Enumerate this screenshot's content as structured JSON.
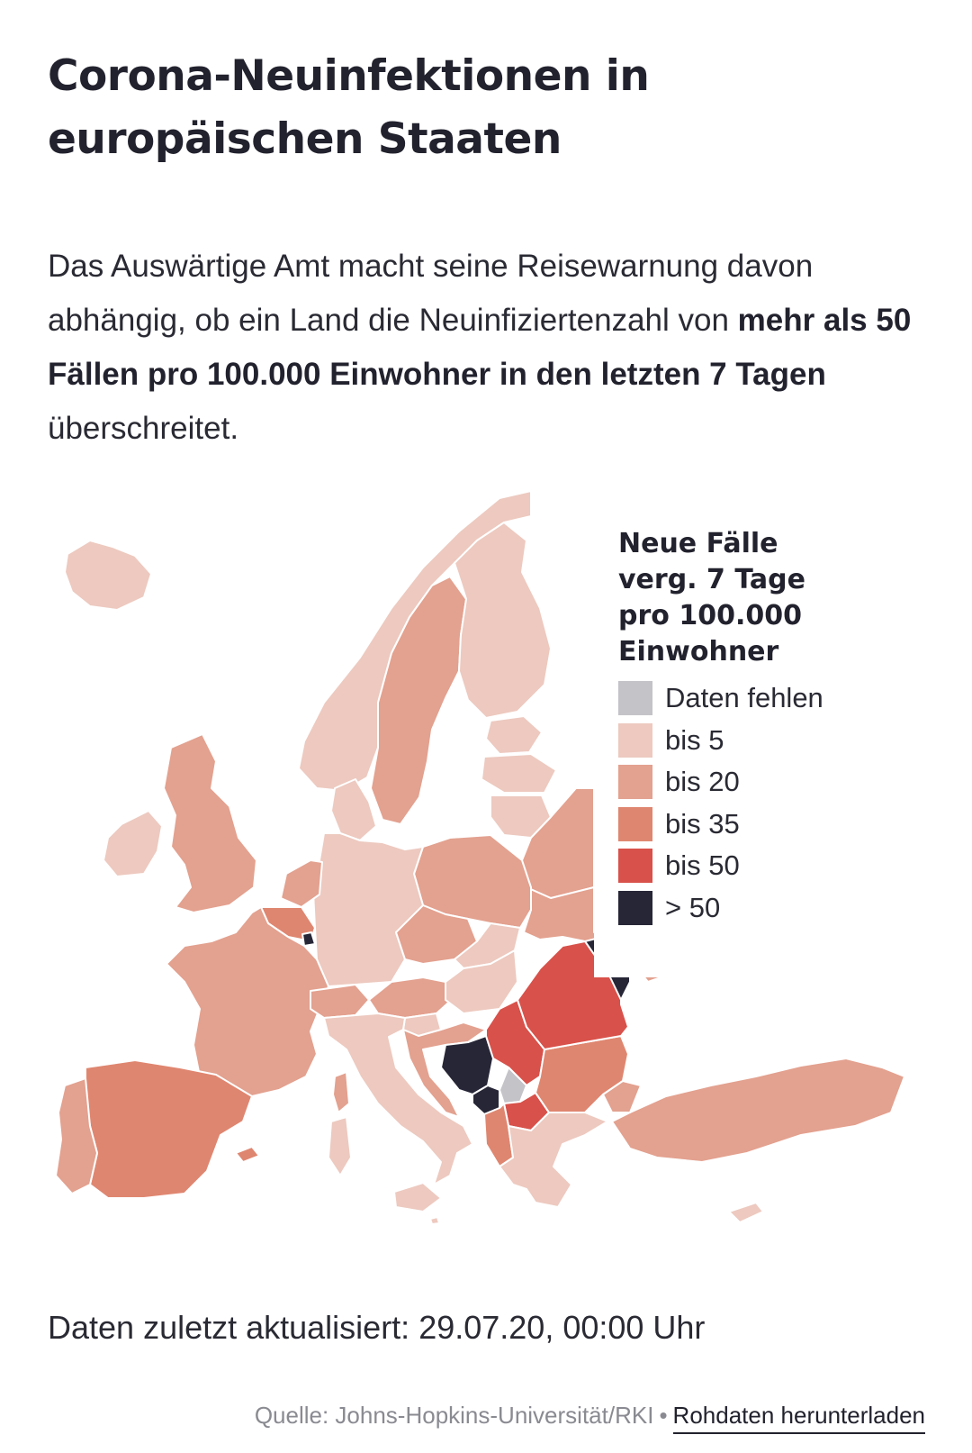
{
  "header": {
    "title": "Corona-Neuinfektionen in europäischen Staaten"
  },
  "intro": {
    "text_before": "Das Auswärtige Amt macht seine Reisewarnung davon abhängig, ob ein Land die Neuinfiziertenzahl von ",
    "text_bold": "mehr als 50 Fällen pro 100.000 Einwohner in den letzten 7 Tagen",
    "text_after": " überschreitet."
  },
  "legend": {
    "title": "Neue Fälle verg. 7 Tage pro 100.000 Einwohner",
    "items": [
      {
        "label": "Daten fehlen",
        "color": "#c3c3c8"
      },
      {
        "label": "bis 5",
        "color": "#edc9bf"
      },
      {
        "label": "bis 20",
        "color": "#e3a18f"
      },
      {
        "label": "bis 35",
        "color": "#df8670"
      },
      {
        "label": "bis 50",
        "color": "#d8514a"
      },
      {
        "label": "> 50",
        "color": "#262637"
      }
    ]
  },
  "map": {
    "regions": [
      {
        "name": "Island",
        "category": "bis 5"
      },
      {
        "name": "Irland",
        "category": "bis 5"
      },
      {
        "name": "Vereinigtes Königreich",
        "category": "bis 20"
      },
      {
        "name": "Norwegen",
        "category": "bis 5"
      },
      {
        "name": "Schweden",
        "category": "bis 20"
      },
      {
        "name": "Finnland",
        "category": "bis 5"
      },
      {
        "name": "Estland",
        "category": "bis 5"
      },
      {
        "name": "Lettland",
        "category": "bis 5"
      },
      {
        "name": "Litauen",
        "category": "bis 5"
      },
      {
        "name": "Dänemark",
        "category": "bis 5"
      },
      {
        "name": "Niederlande",
        "category": "bis 20"
      },
      {
        "name": "Belgien",
        "category": "bis 35"
      },
      {
        "name": "Luxemburg",
        "category": "> 50"
      },
      {
        "name": "Deutschland",
        "category": "bis 5"
      },
      {
        "name": "Polen",
        "category": "bis 20"
      },
      {
        "name": "Belarus",
        "category": "bis 20"
      },
      {
        "name": "Ukraine",
        "category": "bis 20"
      },
      {
        "name": "Frankreich",
        "category": "bis 20"
      },
      {
        "name": "Spanien",
        "category": "bis 35"
      },
      {
        "name": "Portugal",
        "category": "bis 20"
      },
      {
        "name": "Schweiz",
        "category": "bis 20"
      },
      {
        "name": "Italien",
        "category": "bis 5"
      },
      {
        "name": "Österreich",
        "category": "bis 20"
      },
      {
        "name": "Tschechien",
        "category": "bis 20"
      },
      {
        "name": "Slowakei",
        "category": "bis 5"
      },
      {
        "name": "Ungarn",
        "category": "bis 5"
      },
      {
        "name": "Slowenien",
        "category": "bis 5"
      },
      {
        "name": "Kroatien",
        "category": "bis 20"
      },
      {
        "name": "Bosnien und Herzegowina",
        "category": "> 50"
      },
      {
        "name": "Serbien",
        "category": "bis 50"
      },
      {
        "name": "Montenegro",
        "category": "> 50"
      },
      {
        "name": "Kosovo",
        "category": "Daten fehlen"
      },
      {
        "name": "Nordmazedonien",
        "category": "bis 50"
      },
      {
        "name": "Albanien",
        "category": "bis 35"
      },
      {
        "name": "Griechenland",
        "category": "bis 5"
      },
      {
        "name": "Bulgarien",
        "category": "bis 35"
      },
      {
        "name": "Rumänien",
        "category": "bis 50"
      },
      {
        "name": "Moldau",
        "category": "> 50"
      },
      {
        "name": "Türkei",
        "category": "bis 20"
      },
      {
        "name": "Zypern",
        "category": "bis 5"
      },
      {
        "name": "Malta",
        "category": "bis 5"
      }
    ]
  },
  "updated": "Daten zuletzt aktualisiert: 29.07.20, 00:00 Uhr",
  "footer": {
    "source": "Quelle: Johns-Hopkins-Universität/RKI",
    "separator": "•",
    "download_link": "Rohdaten herunterladen"
  }
}
